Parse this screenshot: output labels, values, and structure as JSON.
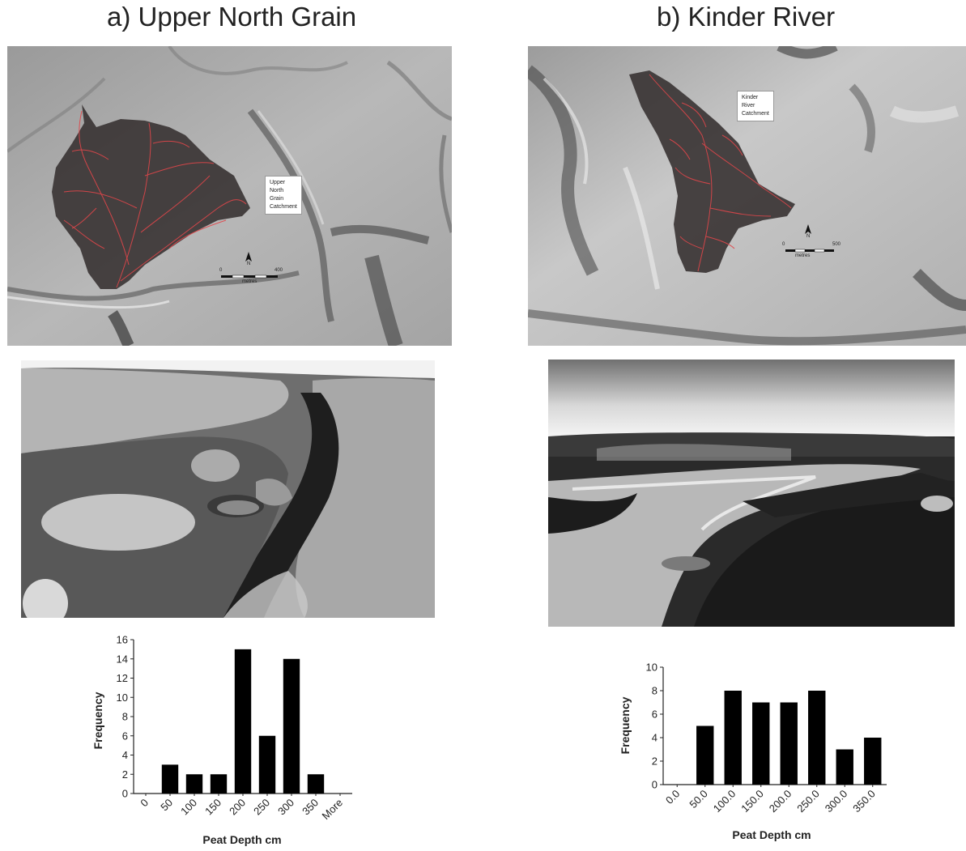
{
  "panels": {
    "a": {
      "title": "a) Upper North Grain",
      "map_label_lines": [
        "Upper",
        "North",
        "Grain",
        "Catchment"
      ],
      "scale": {
        "start": "0",
        "end": "400",
        "unit": "metres",
        "north": "N"
      }
    },
    "b": {
      "title": "b) Kinder River",
      "map_label_lines": [
        "Kinder",
        "River",
        "Catchment"
      ],
      "scale": {
        "start": "0",
        "end": "500",
        "unit": "metres",
        "north": "N"
      }
    }
  },
  "chart_data": [
    {
      "type": "bar",
      "categories": [
        "0",
        "50",
        "100",
        "150",
        "200",
        "250",
        "300",
        "350",
        "More"
      ],
      "values": [
        0,
        3,
        2,
        2,
        15,
        6,
        14,
        2,
        0
      ],
      "xlabel": "Peat Depth cm",
      "ylabel": "Frequency",
      "ylim": [
        0,
        16
      ],
      "yticks": [
        "0",
        "2",
        "4",
        "6",
        "8",
        "10",
        "12",
        "14",
        "16"
      ],
      "bar_color": "#000000",
      "grid": false,
      "legend": "none"
    },
    {
      "type": "bar",
      "categories": [
        "0.0",
        "50.0",
        "100.0",
        "150.0",
        "200.0",
        "250.0",
        "300.0",
        "350.0"
      ],
      "values": [
        0,
        5,
        8,
        7,
        7,
        8,
        3,
        4
      ],
      "xlabel": "Peat Depth cm",
      "ylabel": "Frequency",
      "ylim": [
        0,
        10
      ],
      "yticks": [
        "0",
        "2",
        "4",
        "6",
        "8",
        "10"
      ],
      "bar_color": "#000000",
      "grid": false,
      "legend": "none"
    }
  ]
}
